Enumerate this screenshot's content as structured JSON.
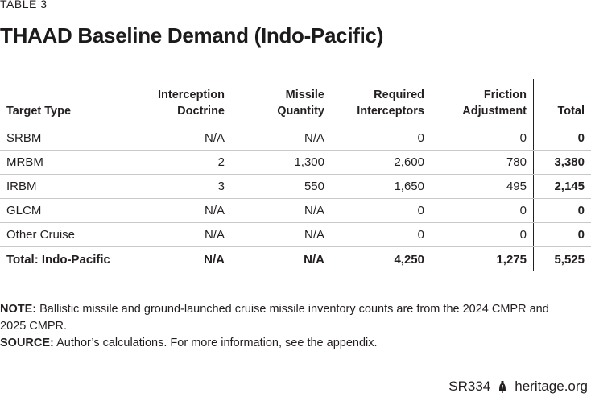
{
  "table_label": "TABLE 3",
  "title": "THAAD Baseline Demand (Indo-Pacific)",
  "columns": {
    "type": "Target Type",
    "doctrine_1": "Interception",
    "doctrine_2": "Doctrine",
    "qty_1": "Missile",
    "qty_2": "Quantity",
    "req_1": "Required",
    "req_2": "Interceptors",
    "fric_1": "Friction",
    "fric_2": "Adjustment",
    "total": "Total"
  },
  "rows": [
    {
      "type": "SRBM",
      "doctrine": "N/A",
      "qty": "N/A",
      "req": "0",
      "fric": "0",
      "total": "0"
    },
    {
      "type": "MRBM",
      "doctrine": "2",
      "qty": "1,300",
      "req": "2,600",
      "fric": "780",
      "total": "3,380"
    },
    {
      "type": "IRBM",
      "doctrine": "3",
      "qty": "550",
      "req": "1,650",
      "fric": "495",
      "total": "2,145"
    },
    {
      "type": "GLCM",
      "doctrine": "N/A",
      "qty": "N/A",
      "req": "0",
      "fric": "0",
      "total": "0"
    },
    {
      "type": "Other Cruise",
      "doctrine": "N/A",
      "qty": "N/A",
      "req": "0",
      "fric": "0",
      "total": "0"
    }
  ],
  "total_row": {
    "type": "Total: Indo-Pacific",
    "doctrine": "N/A",
    "qty": "N/A",
    "req": "4,250",
    "fric": "1,275",
    "total": "5,525"
  },
  "note_label": "NOTE:",
  "note_text": "Ballistic missile and ground-launched cruise missile inventory counts are from the 2024 CMPR and 2025 CMPR.",
  "source_label": "SOURCE:",
  "source_text": "Author’s calculations. For more information, see the appendix.",
  "footer": {
    "report_id": "SR334",
    "site": "heritage.org",
    "logo_icon": "liberty-bell-icon"
  }
}
